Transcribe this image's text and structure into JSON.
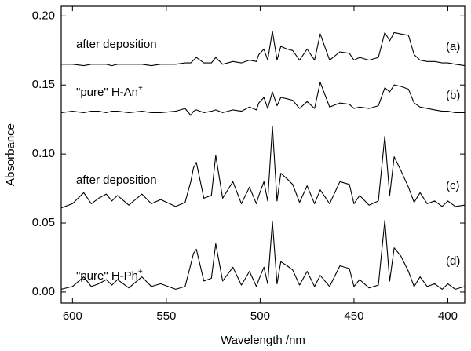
{
  "chart_data": {
    "type": "line",
    "xlabel": "Wavelength /nm",
    "ylabel": "Absorbance",
    "xlim": [
      606,
      391
    ],
    "ylim": [
      -0.008,
      0.207
    ],
    "xticks": [
      600,
      550,
      500,
      450,
      400
    ],
    "yticks": [
      {
        "value": 0,
        "label": "0.00"
      },
      {
        "value": 0.05,
        "label": "0.05"
      },
      {
        "value": 0.1,
        "label": "0.10"
      },
      {
        "value": 0.15,
        "label": "0.15"
      },
      {
        "value": 0.2,
        "label": "0.20"
      }
    ],
    "annotations": [
      {
        "text": "after deposition"
      },
      {
        "text": "\"pure\" H-An",
        "sup": "+"
      },
      {
        "text": "after deposition"
      },
      {
        "text": "\"pure\" H-Ph",
        "sup": "+"
      }
    ],
    "x": [
      606,
      600,
      594,
      590,
      586,
      582,
      579,
      576,
      570,
      563,
      558,
      553,
      545,
      540,
      537,
      535.5,
      534,
      530,
      526,
      523.7,
      520,
      514.5,
      510,
      505.7,
      502,
      500.7,
      498,
      496,
      493.5,
      491,
      489,
      485.6,
      482.7,
      479,
      475,
      471,
      468,
      463,
      457.5,
      452.5,
      450,
      447,
      442,
      437,
      433.6,
      431,
      428.6,
      425,
      421,
      418,
      414.8,
      411,
      407,
      403,
      400,
      396,
      391
    ],
    "series": [
      {
        "name": "(a)",
        "color": "#000000",
        "values": [
          0.165,
          0.165,
          0.164,
          0.165,
          0.165,
          0.165,
          0.164,
          0.165,
          0.165,
          0.165,
          0.164,
          0.165,
          0.165,
          0.166,
          0.166,
          0.168,
          0.17,
          0.166,
          0.166,
          0.17,
          0.165,
          0.167,
          0.166,
          0.168,
          0.167,
          0.172,
          0.176,
          0.168,
          0.189,
          0.168,
          0.178,
          0.176,
          0.175,
          0.168,
          0.176,
          0.168,
          0.187,
          0.168,
          0.174,
          0.173,
          0.168,
          0.17,
          0.168,
          0.17,
          0.188,
          0.182,
          0.188,
          0.187,
          0.186,
          0.172,
          0.168,
          0.167,
          0.167,
          0.166,
          0.166,
          0.165,
          0.164
        ]
      },
      {
        "name": "(b)",
        "color": "#000000",
        "values": [
          0.13,
          0.131,
          0.13,
          0.131,
          0.131,
          0.13,
          0.131,
          0.131,
          0.13,
          0.131,
          0.13,
          0.13,
          0.131,
          0.133,
          0.128,
          0.131,
          0.132,
          0.13,
          0.131,
          0.132,
          0.13,
          0.132,
          0.131,
          0.134,
          0.132,
          0.137,
          0.141,
          0.133,
          0.145,
          0.135,
          0.141,
          0.14,
          0.139,
          0.133,
          0.138,
          0.133,
          0.152,
          0.134,
          0.137,
          0.136,
          0.133,
          0.134,
          0.133,
          0.135,
          0.148,
          0.145,
          0.15,
          0.149,
          0.147,
          0.137,
          0.134,
          0.133,
          0.132,
          0.131,
          0.131,
          0.13,
          0.13
        ]
      },
      {
        "name": "(c)",
        "color": "#000000",
        "values": [
          0.061,
          0.064,
          0.072,
          0.064,
          0.068,
          0.071,
          0.066,
          0.07,
          0.063,
          0.071,
          0.064,
          0.067,
          0.062,
          0.065,
          0.08,
          0.09,
          0.094,
          0.068,
          0.07,
          0.099,
          0.068,
          0.08,
          0.064,
          0.076,
          0.064,
          0.07,
          0.08,
          0.066,
          0.12,
          0.066,
          0.086,
          0.082,
          0.078,
          0.065,
          0.077,
          0.064,
          0.074,
          0.064,
          0.08,
          0.078,
          0.064,
          0.07,
          0.063,
          0.066,
          0.113,
          0.07,
          0.098,
          0.088,
          0.076,
          0.065,
          0.072,
          0.064,
          0.066,
          0.062,
          0.066,
          0.062,
          0.063
        ]
      },
      {
        "name": "(d)",
        "color": "#000000",
        "values": [
          0.002,
          0.004,
          0.011,
          0.004,
          0.006,
          0.009,
          0.005,
          0.009,
          0.003,
          0.011,
          0.004,
          0.006,
          0.002,
          0.004,
          0.02,
          0.028,
          0.031,
          0.008,
          0.01,
          0.035,
          0.008,
          0.018,
          0.005,
          0.015,
          0.004,
          0.009,
          0.018,
          0.006,
          0.051,
          0.006,
          0.022,
          0.019,
          0.016,
          0.005,
          0.015,
          0.004,
          0.012,
          0.004,
          0.019,
          0.017,
          0.004,
          0.009,
          0.003,
          0.005,
          0.052,
          0.008,
          0.032,
          0.026,
          0.015,
          0.004,
          0.011,
          0.004,
          0.006,
          0.002,
          0.006,
          0.002,
          0.004
        ]
      }
    ]
  }
}
